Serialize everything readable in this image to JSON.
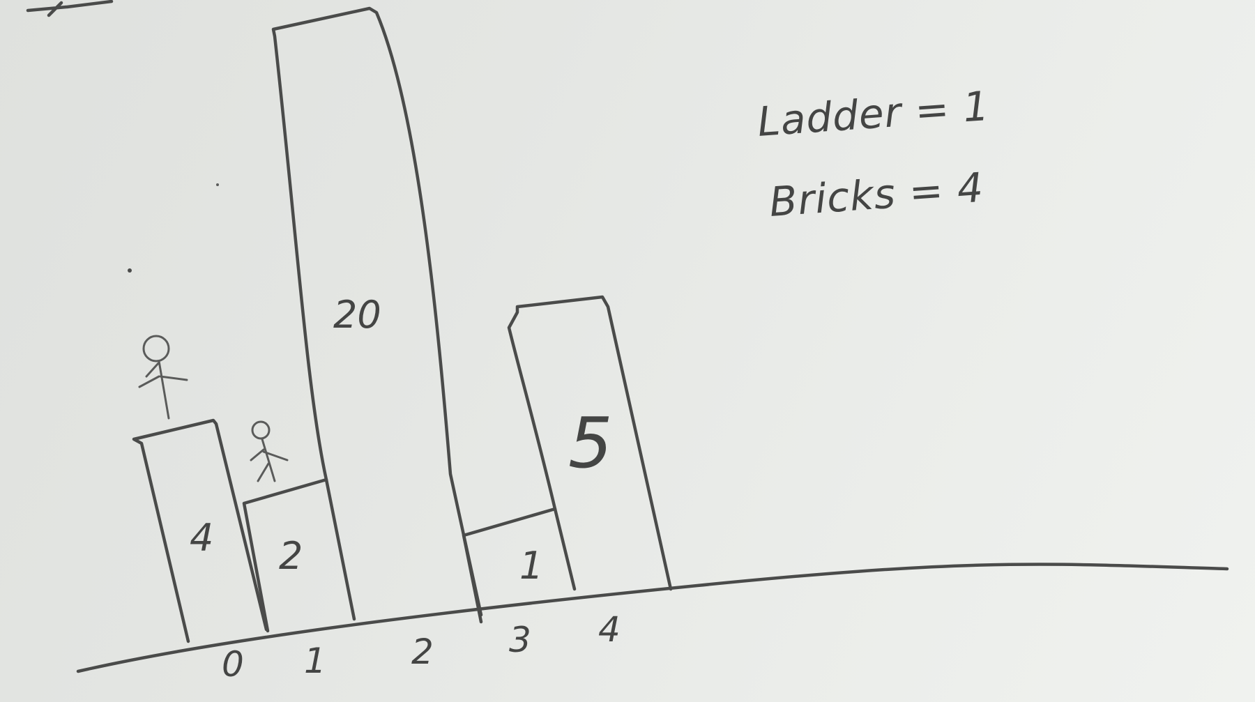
{
  "buildings": [
    {
      "index_label": "0",
      "height_label": "4"
    },
    {
      "index_label": "1",
      "height_label": "2"
    },
    {
      "index_label": "2",
      "height_label": "20"
    },
    {
      "index_label": "3",
      "height_label": "1"
    },
    {
      "index_label": "4",
      "height_label": "5"
    }
  ],
  "legend": {
    "ladder_text": "Ladder = 1",
    "bricks_text": "Bricks = 4"
  },
  "colors": {
    "marker": "#4a4b4a",
    "board": "#e4e6e3"
  }
}
